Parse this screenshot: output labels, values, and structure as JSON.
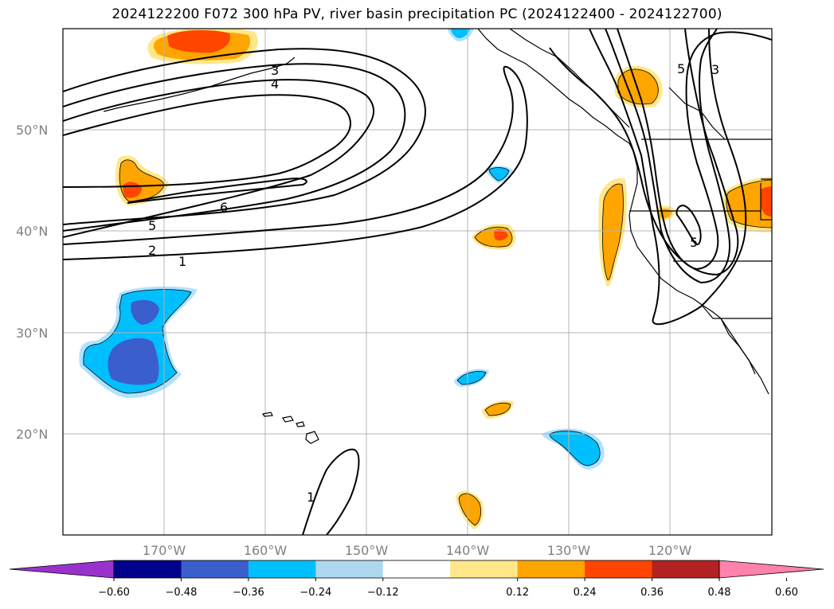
{
  "title": "2024122200 F072 300 hPa PV, river basin precipitation PC (2024122400 - 2024122700)",
  "map": {
    "lat_labels": [
      "50°N",
      "40°N",
      "30°N",
      "20°N"
    ],
    "lon_labels": [
      "170°W",
      "160°W",
      "150°W",
      "140°W",
      "130°W",
      "120°W"
    ],
    "pv_contour_labels": [
      "1",
      "2",
      "5",
      "6",
      "4",
      "3",
      "5",
      "3",
      "5",
      "1"
    ],
    "gridlines": true
  },
  "colorbar": {
    "ticks": [
      "−0.60",
      "−0.48",
      "−0.36",
      "−0.24",
      "−0.12",
      "0.12",
      "0.24",
      "0.36",
      "0.48",
      "0.60"
    ],
    "colors": [
      "#9932cc",
      "#00008b",
      "#3a5fcd",
      "#00bfff",
      "#add8f0",
      "#ffffff",
      "#ffe78a",
      "#ffa500",
      "#ff4500",
      "#b22222",
      "#ff82ab"
    ]
  },
  "colors": {
    "neg_deep": "#3a5fcd",
    "neg_mid": "#00bfff",
    "neg_light": "#b0e2ff",
    "pos_light": "#ffe78a",
    "pos_mid": "#ffa500",
    "pos_deep": "#ff4500"
  }
}
